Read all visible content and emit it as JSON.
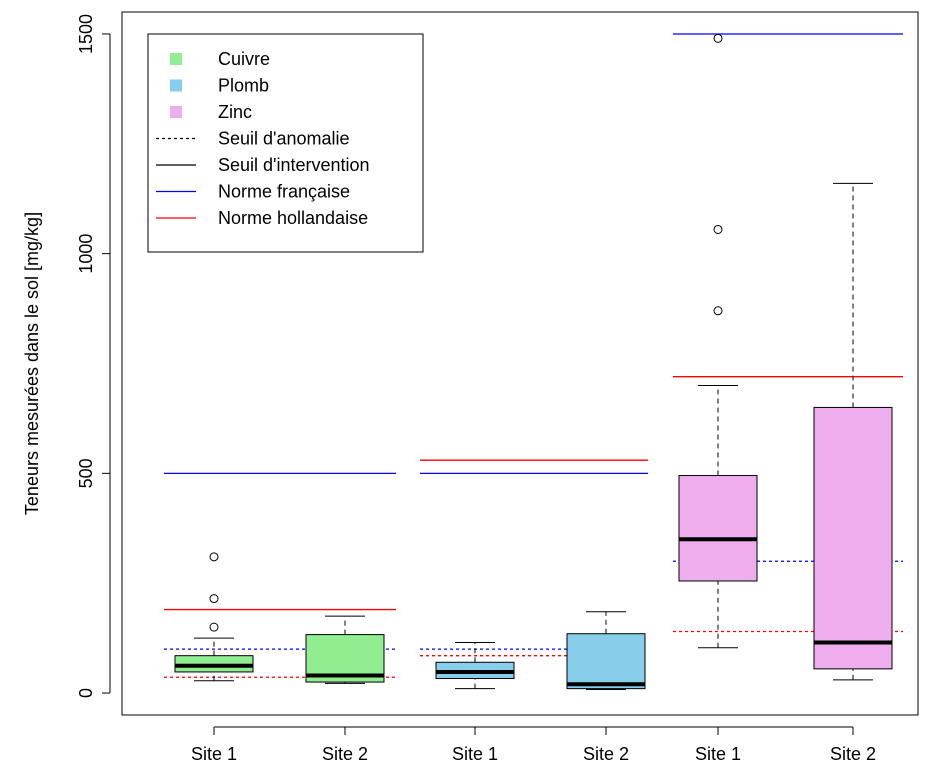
{
  "chart_data": {
    "type": "box",
    "title": "",
    "xlabel": "",
    "ylabel": "Teneurs mesurées dans le sol [mg/kg]",
    "ylim": [
      -50,
      1550
    ],
    "yticks": [
      0,
      500,
      1000,
      1500
    ],
    "ytick_labels": [
      "0",
      "500",
      "1000",
      "1500"
    ],
    "legend_placement": "top-left",
    "legend": [
      {
        "label": "Cuivre",
        "kind": "fill",
        "color": "#90ee90"
      },
      {
        "label": "Plomb",
        "kind": "fill",
        "color": "#87ceeb"
      },
      {
        "label": "Zinc",
        "kind": "fill",
        "color": "#eeaeee"
      },
      {
        "label": "Seuil d'anomalie",
        "kind": "line",
        "color": "#000000",
        "dash": "dotted"
      },
      {
        "label": "Seuil d'intervention",
        "kind": "line",
        "color": "#000000",
        "dash": "solid"
      },
      {
        "label": "Norme française",
        "kind": "line",
        "color": "#0000ff",
        "dash": "solid"
      },
      {
        "label": "Norme hollandaise",
        "kind": "line",
        "color": "#ff0000",
        "dash": "solid"
      }
    ],
    "boxes": [
      {
        "label": "Site 1",
        "metal": "Cuivre",
        "color": "#90ee90",
        "whisker_low": 28,
        "q1": 48,
        "median": 62,
        "q3": 85,
        "whisker_high": 125,
        "outliers": [
          150,
          215,
          310
        ]
      },
      {
        "label": "Site 2",
        "metal": "Cuivre",
        "color": "#90ee90",
        "whisker_low": 22,
        "q1": 25,
        "median": 40,
        "q3": 133,
        "whisker_high": 175,
        "outliers": []
      },
      {
        "label": "Site 1",
        "metal": "Plomb",
        "color": "#87ceeb",
        "whisker_low": 10,
        "q1": 33,
        "median": 48,
        "q3": 70,
        "whisker_high": 115,
        "outliers": []
      },
      {
        "label": "Site 2",
        "metal": "Plomb",
        "color": "#87ceeb",
        "whisker_low": 8,
        "q1": 10,
        "median": 20,
        "q3": 135,
        "whisker_high": 185,
        "outliers": []
      },
      {
        "label": "Site 1",
        "metal": "Zinc",
        "color": "#eeaeee",
        "whisker_low": 103,
        "q1": 255,
        "median": 350,
        "q3": 495,
        "whisker_high": 700,
        "outliers": [
          870,
          1055,
          1490
        ]
      },
      {
        "label": "Site 2",
        "metal": "Zinc",
        "color": "#eeaeee",
        "whisker_low": 30,
        "q1": 55,
        "median": 115,
        "q3": 650,
        "whisker_high": 1160,
        "outliers": []
      }
    ],
    "reference_lines": [
      {
        "metal": "Cuivre",
        "type": "Norme française",
        "value": 500,
        "color": "#0000ff",
        "dash": "solid"
      },
      {
        "metal": "Cuivre",
        "type": "Norme hollandaise",
        "value": 190,
        "color": "#ff0000",
        "dash": "solid"
      },
      {
        "metal": "Cuivre",
        "type": "Seuil d'anomalie",
        "value": 100,
        "color": "#0000ff",
        "dash": "dotted"
      },
      {
        "metal": "Cuivre",
        "type": "Seuil d'anomalie",
        "value": 36,
        "color": "#ff0000",
        "dash": "dotted"
      },
      {
        "metal": "Plomb",
        "type": "Norme française",
        "value": 500,
        "color": "#0000ff",
        "dash": "solid"
      },
      {
        "metal": "Plomb",
        "type": "Norme hollandaise",
        "value": 530,
        "color": "#ff0000",
        "dash": "solid"
      },
      {
        "metal": "Plomb",
        "type": "Seuil d'anomalie",
        "value": 100,
        "color": "#0000ff",
        "dash": "dotted"
      },
      {
        "metal": "Plomb",
        "type": "Seuil d'anomalie",
        "value": 85,
        "color": "#ff0000",
        "dash": "dotted"
      },
      {
        "metal": "Zinc",
        "type": "Norme française",
        "value": 1500,
        "color": "#0000ff",
        "dash": "solid"
      },
      {
        "metal": "Zinc",
        "type": "Norme hollandaise",
        "value": 720,
        "color": "#ff0000",
        "dash": "solid"
      },
      {
        "metal": "Zinc",
        "type": "Seuil d'anomalie",
        "value": 300,
        "color": "#0000ff",
        "dash": "dotted"
      },
      {
        "metal": "Zinc",
        "type": "Seuil d'anomalie",
        "value": 140,
        "color": "#ff0000",
        "dash": "dotted"
      }
    ]
  }
}
